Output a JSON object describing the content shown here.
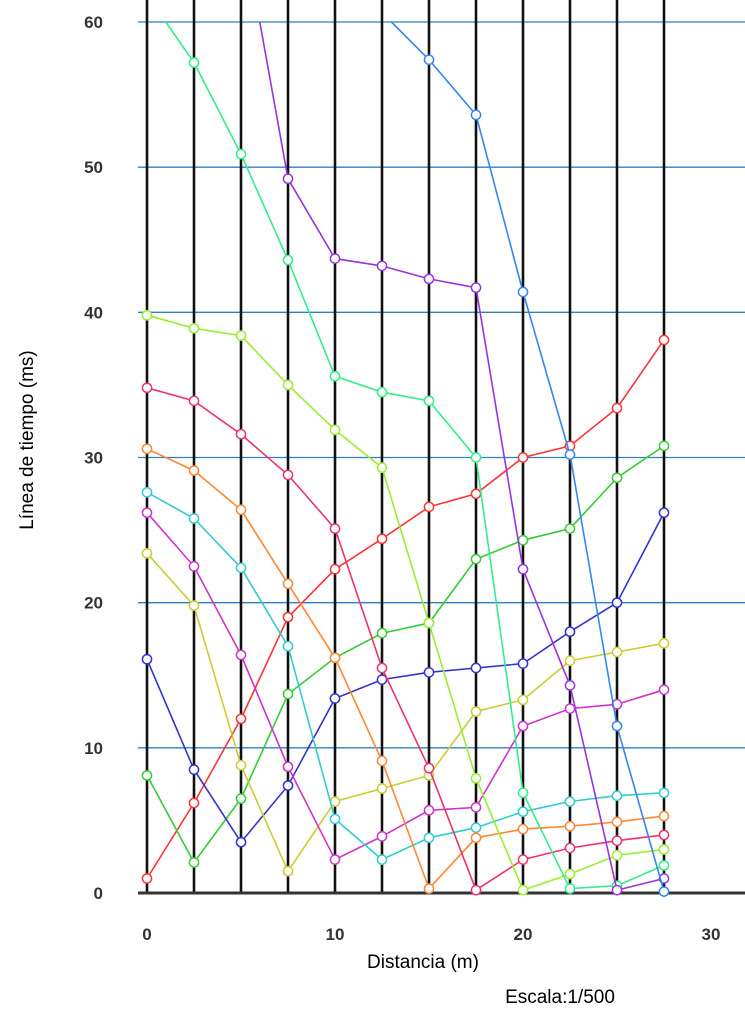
{
  "chart_data": {
    "type": "line",
    "xlabel": "Distancia (m)",
    "ylabel": "Línea de tiempo (ms)",
    "xlim": [
      0,
      30
    ],
    "ylim": [
      0,
      60
    ],
    "x_ticks": [
      0,
      10,
      20,
      30
    ],
    "y_ticks": [
      0,
      10,
      20,
      30,
      40,
      50,
      60
    ],
    "grid": {
      "vertical_lines_at": [
        0,
        2.5,
        5,
        7.5,
        10,
        12.5,
        15,
        17.5,
        20,
        22.5,
        25,
        27.5
      ],
      "horizontal_lines_at": [
        10,
        20,
        30,
        40,
        50,
        60
      ]
    },
    "legend": "none",
    "annotation": "Escala:1/500",
    "series": [
      {
        "color": "#ff3333",
        "x": [
          0,
          2.5,
          5,
          7.5,
          10,
          12.5,
          15,
          17.5,
          20,
          22.5,
          25,
          27.5
        ],
        "y": [
          1.0,
          6.2,
          12.0,
          19.0,
          22.3,
          24.4,
          26.6,
          27.5,
          30.0,
          30.8,
          33.4,
          38.1
        ]
      },
      {
        "color": "#33cc33",
        "x": [
          0,
          2.5,
          5,
          7.5,
          10,
          12.5,
          15,
          17.5,
          20,
          22.5,
          25,
          27.5
        ],
        "y": [
          8.1,
          2.1,
          6.5,
          13.7,
          16.2,
          17.9,
          18.6,
          23.0,
          24.3,
          25.1,
          28.6,
          30.8
        ]
      },
      {
        "color": "#3333cc",
        "x": [
          0,
          2.5,
          5,
          7.5,
          10,
          12.5,
          15,
          17.5,
          20,
          22.5,
          25,
          27.5
        ],
        "y": [
          16.1,
          8.5,
          3.5,
          7.4,
          13.4,
          14.7,
          15.2,
          15.5,
          15.8,
          18.0,
          20.0,
          26.2
        ]
      },
      {
        "color": "#cccc33",
        "x": [
          0,
          2.5,
          5,
          7.5,
          10,
          12.5,
          15,
          17.5,
          20,
          22.5,
          25,
          27.5
        ],
        "y": [
          23.4,
          19.8,
          8.8,
          1.5,
          6.3,
          7.2,
          8.1,
          12.5,
          13.3,
          16.0,
          16.6,
          17.2
        ]
      },
      {
        "color": "#cc33cc",
        "x": [
          0,
          2.5,
          5,
          7.5,
          10,
          12.5,
          15,
          17.5,
          20,
          22.5,
          25,
          27.5
        ],
        "y": [
          26.2,
          22.5,
          16.4,
          8.7,
          2.3,
          3.9,
          5.7,
          5.9,
          11.5,
          12.7,
          13.0,
          14.0
        ]
      },
      {
        "color": "#33cccc",
        "x": [
          0,
          2.5,
          5,
          7.5,
          10,
          12.5,
          15,
          17.5,
          20,
          22.5,
          25,
          27.5
        ],
        "y": [
          27.6,
          25.8,
          22.4,
          17.0,
          5.1,
          2.3,
          3.8,
          4.5,
          5.6,
          6.3,
          6.7,
          6.9
        ]
      },
      {
        "color": "#ff8833",
        "x": [
          0,
          2.5,
          5,
          7.5,
          10,
          12.5,
          15,
          17.5,
          20,
          22.5,
          25,
          27.5
        ],
        "y": [
          30.6,
          29.1,
          26.4,
          21.3,
          16.2,
          9.1,
          0.3,
          3.8,
          4.4,
          4.6,
          4.9,
          5.3
        ]
      },
      {
        "color": "#ee3366",
        "x": [
          0,
          2.5,
          5,
          7.5,
          10,
          12.5,
          15,
          17.5,
          20,
          22.5,
          25,
          27.5
        ],
        "y": [
          34.8,
          33.9,
          31.6,
          28.8,
          25.1,
          15.5,
          8.6,
          0.2,
          2.3,
          3.1,
          3.6,
          4.0
        ]
      },
      {
        "color": "#99ee33",
        "x": [
          0,
          2.5,
          5,
          7.5,
          10,
          12.5,
          15,
          17.5,
          20,
          22.5,
          25,
          27.5
        ],
        "y": [
          39.8,
          38.9,
          38.4,
          35.0,
          31.9,
          29.3,
          18.6,
          7.9,
          0.2,
          1.3,
          2.6,
          3.0
        ]
      },
      {
        "color": "#33ee88",
        "x": [
          1.0,
          2.5,
          5,
          7.5,
          10,
          12.5,
          15,
          17.5,
          20,
          22.5,
          25,
          27.5
        ],
        "y": [
          60.0,
          57.2,
          50.9,
          43.6,
          35.6,
          34.5,
          33.9,
          30.0,
          6.9,
          0.3,
          0.5,
          1.9
        ]
      },
      {
        "color": "#9933dd",
        "x": [
          6.0,
          7.5,
          10,
          12.5,
          15,
          17.5,
          20,
          22.5,
          25,
          27.5
        ],
        "y": [
          60.0,
          49.2,
          43.7,
          43.2,
          42.3,
          41.7,
          22.3,
          14.3,
          0.2,
          1.0
        ]
      },
      {
        "color": "#3388ee",
        "x": [
          13.0,
          15,
          17.5,
          20,
          22.5,
          25,
          27.5
        ],
        "y": [
          60.0,
          57.4,
          53.6,
          41.4,
          30.2,
          11.5,
          0.1
        ]
      }
    ]
  }
}
